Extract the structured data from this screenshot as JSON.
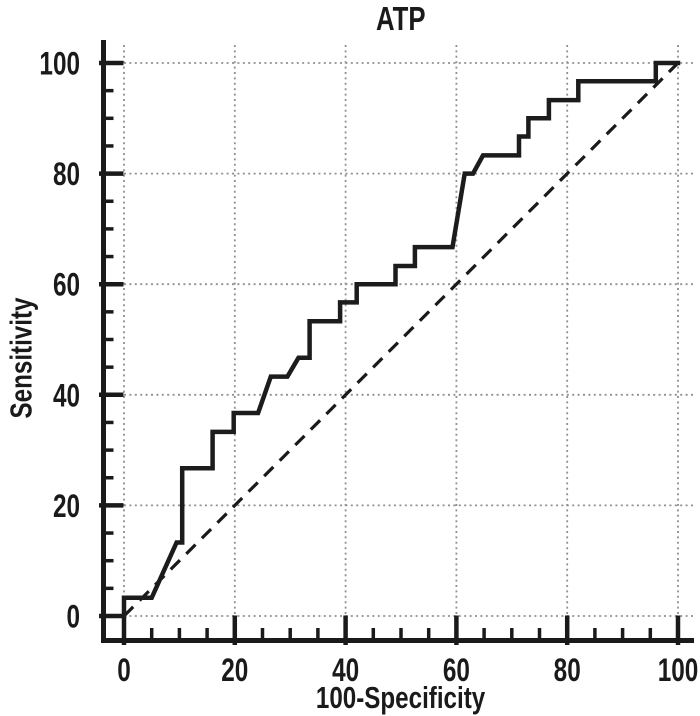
{
  "chart_data": {
    "type": "line",
    "title": "ATP",
    "xlabel": "100-Specificity",
    "ylabel": "Sensitivity",
    "xlim": [
      0,
      100
    ],
    "ylim": [
      0,
      100
    ],
    "x_ticks": [
      "0",
      "20",
      "40",
      "60",
      "80",
      "100"
    ],
    "y_ticks": [
      "0",
      "20",
      "40",
      "60",
      "80",
      "100"
    ],
    "x_tick_values": [
      0,
      20,
      40,
      60,
      80,
      100
    ],
    "y_tick_values": [
      0,
      20,
      40,
      60,
      80,
      100
    ],
    "minor_tick_step": 5,
    "grid": "dotted",
    "legend_position": "none",
    "colors": {
      "curve": "#1c1c1c",
      "axis": "#1a1a1a",
      "grid": "#909090",
      "background": "#ffffff"
    },
    "series": [
      {
        "name": "ROC curve",
        "style": "solid-step",
        "points": [
          [
            0,
            0
          ],
          [
            0,
            3.3
          ],
          [
            5,
            3.3
          ],
          [
            9.5,
            13.3
          ],
          [
            10.5,
            13.3
          ],
          [
            10.5,
            26.7
          ],
          [
            16,
            26.7
          ],
          [
            16,
            33.3
          ],
          [
            19.8,
            33.3
          ],
          [
            19.8,
            36.7
          ],
          [
            24.2,
            36.7
          ],
          [
            26.5,
            43.3
          ],
          [
            29.5,
            43.3
          ],
          [
            31.5,
            46.7
          ],
          [
            33.5,
            46.7
          ],
          [
            33.5,
            53.3
          ],
          [
            39,
            53.3
          ],
          [
            39,
            56.7
          ],
          [
            42,
            56.7
          ],
          [
            42,
            60
          ],
          [
            49,
            60
          ],
          [
            49,
            63.3
          ],
          [
            52.5,
            63.3
          ],
          [
            52.5,
            66.7
          ],
          [
            59.3,
            66.7
          ],
          [
            61.5,
            80
          ],
          [
            63,
            80
          ],
          [
            64.8,
            83.3
          ],
          [
            71.3,
            83.3
          ],
          [
            71.3,
            86.7
          ],
          [
            73,
            86.7
          ],
          [
            73,
            90
          ],
          [
            76.7,
            90
          ],
          [
            76.7,
            93.3
          ],
          [
            82,
            93.3
          ],
          [
            82,
            96.7
          ],
          [
            96,
            96.7
          ],
          [
            96,
            100
          ],
          [
            100,
            100
          ]
        ]
      },
      {
        "name": "Reference diagonal",
        "style": "dashed",
        "points": [
          [
            0,
            0
          ],
          [
            100,
            100
          ]
        ]
      }
    ]
  }
}
